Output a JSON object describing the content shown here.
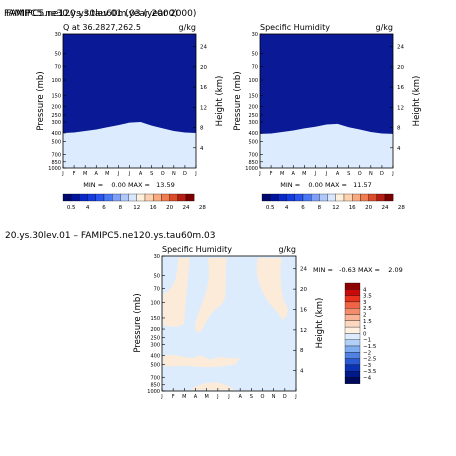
{
  "header": {
    "overlap_a": "FAMIPC5.ne30.ys.30lev.01 (year 2000)",
    "overlap_b": "FAMIPC5.ne120.ys.tau60m.03 (year 2000)",
    "diff_title": "20.ys.30lev.01 – FAMIPC5.ne120.ys.tau60m.03"
  },
  "axes": {
    "pressure_label": "Pressure (mb)",
    "height_label": "Height (km)",
    "pressure_ticks": [
      "30",
      "50",
      "70",
      "100",
      "150",
      "200",
      "250",
      "300",
      "400",
      "500",
      "700",
      "850",
      "1000"
    ],
    "height_ticks": [
      "24",
      "20",
      "16",
      "12",
      "8",
      "4"
    ],
    "month_ticks": [
      "J",
      "F",
      "M",
      "A",
      "M",
      "J",
      "J",
      "A",
      "S",
      "O",
      "N",
      "D",
      "J"
    ]
  },
  "colorbar_top": {
    "labels": [
      "0.5",
      "4",
      "6",
      "8",
      "12",
      "16",
      "20",
      "24",
      "28"
    ],
    "colors": [
      "#000a6e",
      "#0014a0",
      "#0a28c8",
      "#143cdc",
      "#2a55ec",
      "#4a78f5",
      "#7ea0fa",
      "#aec8fc",
      "#d8e6fe",
      "#fff0dc",
      "#fcd2b0",
      "#f8aa80",
      "#f07c50",
      "#dc4c28",
      "#b41e14",
      "#7a0000"
    ]
  },
  "colorbar_diff": {
    "labels": [
      "4",
      "3.5",
      "3",
      "2.5",
      "2",
      "1.5",
      "1",
      "0",
      "−1",
      "−1.5",
      "−2",
      "−2.5",
      "−3",
      "−3.5",
      "−4"
    ],
    "colors": [
      "#8c0000",
      "#c80a0a",
      "#e8321e",
      "#f06446",
      "#f48c6c",
      "#f8b496",
      "#fcd8c0",
      "#fff0e0",
      "#dcecfc",
      "#b0d0f8",
      "#80acf0",
      "#5082e4",
      "#2a5ad2",
      "#0c32b4",
      "#001a8c",
      "#000a5a"
    ]
  },
  "chart_data": [
    {
      "type": "heatmap",
      "title": "Q at 36.2827,262.5",
      "units": "g/kg",
      "summary": "MIN =    0.00 MAX =   13.59",
      "min": 0.0,
      "max": 13.59,
      "x": [
        "J",
        "F",
        "M",
        "A",
        "M",
        "J",
        "J",
        "A",
        "S",
        "O",
        "N",
        "D",
        "J"
      ],
      "y_pressure_mb": [
        1000,
        850,
        700,
        500,
        400,
        300,
        250,
        200,
        150,
        100,
        70,
        50,
        30
      ],
      "contour_top_mb": [
        [
          850,
          800,
          730,
          600,
          470,
          400
        ],
        [
          850,
          790,
          715,
          585,
          460,
          395
        ],
        [
          830,
          770,
          690,
          560,
          440,
          380
        ],
        [
          800,
          740,
          660,
          530,
          420,
          365
        ],
        [
          770,
          700,
          620,
          495,
          395,
          345
        ],
        [
          740,
          670,
          580,
          465,
          370,
          325
        ],
        [
          720,
          650,
          560,
          445,
          350,
          305
        ],
        [
          720,
          650,
          555,
          440,
          345,
          300
        ],
        [
          740,
          670,
          585,
          470,
          375,
          330
        ],
        [
          790,
          730,
          645,
          515,
          410,
          355
        ],
        [
          830,
          770,
          690,
          555,
          440,
          380
        ],
        [
          850,
          790,
          715,
          585,
          460,
          395
        ],
        [
          850,
          800,
          730,
          600,
          470,
          400
        ]
      ]
    },
    {
      "type": "heatmap",
      "title": "Specific Humidity",
      "units": "g/kg",
      "summary": "MIN =    0.00 MAX =   11.57",
      "min": 0.0,
      "max": 11.57,
      "x": [
        "J",
        "F",
        "M",
        "A",
        "M",
        "J",
        "J",
        "A",
        "S",
        "O",
        "N",
        "D",
        "J"
      ],
      "y_pressure_mb": [
        1000,
        850,
        700,
        500,
        400,
        300,
        250,
        200,
        150,
        100,
        70,
        50,
        30
      ],
      "contour_top_mb": [
        [
          860,
          810,
          740,
          610,
          480,
          410
        ],
        [
          860,
          800,
          725,
          595,
          470,
          405
        ],
        [
          840,
          780,
          700,
          570,
          450,
          390
        ],
        [
          810,
          750,
          670,
          540,
          430,
          375
        ],
        [
          790,
          720,
          640,
          510,
          405,
          355
        ],
        [
          770,
          700,
          610,
          485,
          385,
          340
        ],
        [
          750,
          680,
          590,
          465,
          365,
          320
        ],
        [
          750,
          680,
          585,
          460,
          360,
          315
        ],
        [
          770,
          700,
          610,
          490,
          390,
          345
        ],
        [
          810,
          750,
          665,
          530,
          420,
          365
        ],
        [
          840,
          785,
          705,
          570,
          450,
          390
        ],
        [
          860,
          800,
          725,
          595,
          470,
          405
        ],
        [
          860,
          810,
          740,
          610,
          480,
          410
        ]
      ]
    },
    {
      "type": "heatmap",
      "title": "Specific Humidity",
      "units": "g/kg",
      "summary": "MIN =   -0.63 MAX =    2.09",
      "min": -0.63,
      "max": 2.09
    }
  ]
}
